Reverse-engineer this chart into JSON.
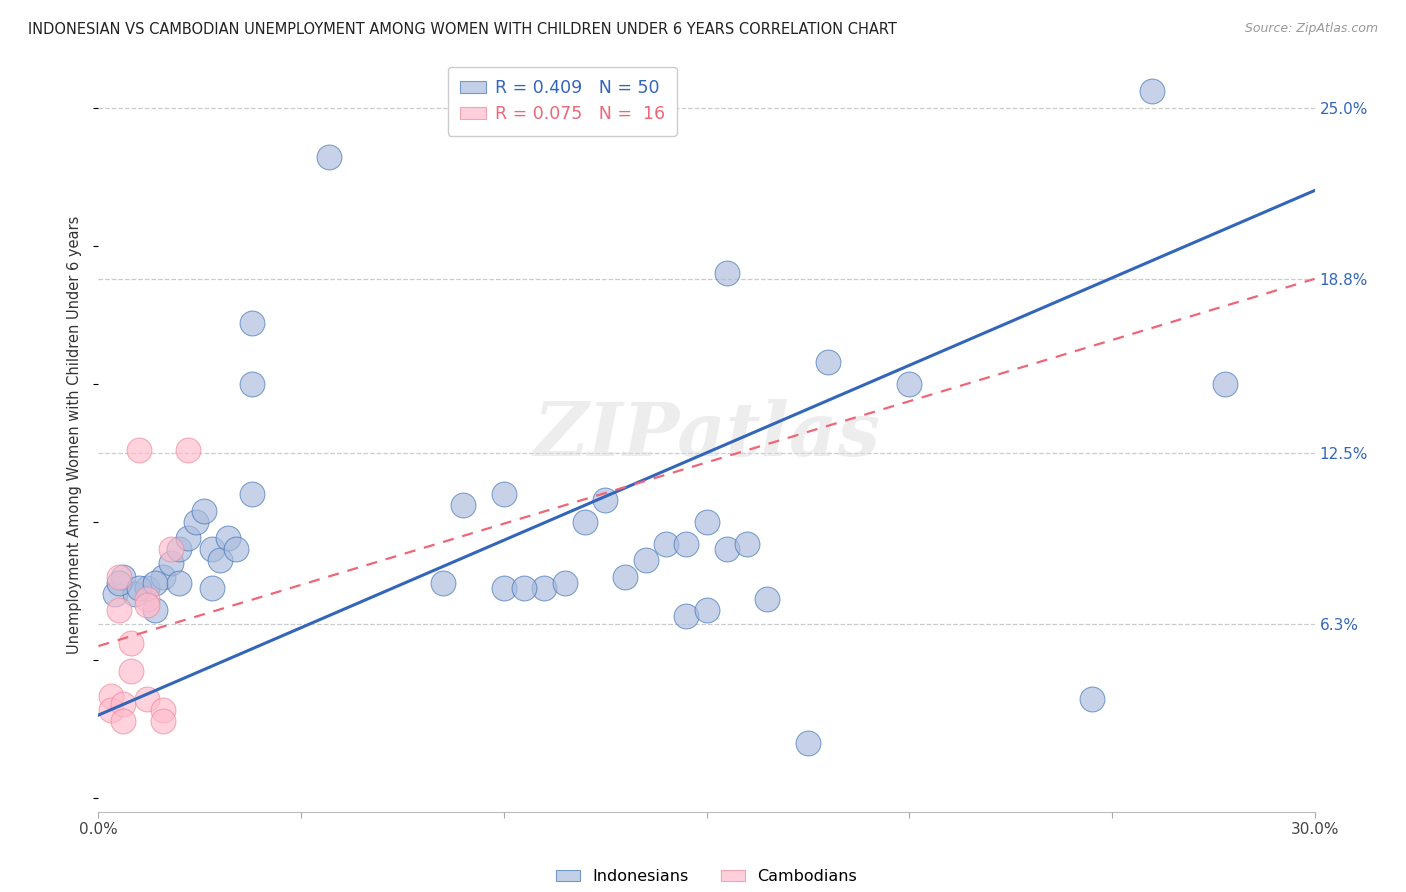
{
  "title": "INDONESIAN VS CAMBODIAN UNEMPLOYMENT AMONG WOMEN WITH CHILDREN UNDER 6 YEARS CORRELATION CHART",
  "source": "Source: ZipAtlas.com",
  "ylabel": "Unemployment Among Women with Children Under 6 years",
  "xlim": [
    0.0,
    0.3
  ],
  "ylim": [
    -0.005,
    0.268
  ],
  "xticks": [
    0.0,
    0.05,
    0.1,
    0.15,
    0.2,
    0.25,
    0.3
  ],
  "xticklabels": [
    "0.0%",
    "",
    "",
    "",
    "",
    "",
    "30.0%"
  ],
  "yticks_right": [
    0.063,
    0.125,
    0.188,
    0.25
  ],
  "yticks_right_labels": [
    "6.3%",
    "12.5%",
    "18.8%",
    "25.0%"
  ],
  "legend_blue_r": "R = 0.409",
  "legend_blue_n": "N = 50",
  "legend_pink_r": "R = 0.075",
  "legend_pink_n": "N =  16",
  "blue_fill": "#AABBDD",
  "pink_fill": "#FFBBCC",
  "blue_edge": "#4477BB",
  "pink_edge": "#EE8899",
  "blue_line": "#3366BB",
  "pink_line": "#EE6677",
  "watermark_color": "#DDDDDD",
  "indonesian_x": [
    0.014,
    0.057,
    0.038,
    0.004,
    0.006,
    0.009,
    0.012,
    0.016,
    0.018,
    0.02,
    0.022,
    0.024,
    0.026,
    0.028,
    0.03,
    0.032,
    0.034,
    0.038,
    0.005,
    0.01,
    0.014,
    0.02,
    0.028,
    0.038,
    0.085,
    0.09,
    0.1,
    0.12,
    0.125,
    0.13,
    0.135,
    0.14,
    0.145,
    0.15,
    0.155,
    0.16,
    0.1,
    0.11,
    0.165,
    0.105,
    0.115,
    0.145,
    0.15,
    0.155,
    0.18,
    0.2,
    0.175,
    0.245,
    0.26,
    0.278
  ],
  "indonesian_y": [
    0.068,
    0.232,
    0.172,
    0.074,
    0.08,
    0.074,
    0.076,
    0.08,
    0.085,
    0.09,
    0.094,
    0.1,
    0.104,
    0.09,
    0.086,
    0.094,
    0.09,
    0.15,
    0.078,
    0.076,
    0.078,
    0.078,
    0.076,
    0.11,
    0.078,
    0.106,
    0.11,
    0.1,
    0.108,
    0.08,
    0.086,
    0.092,
    0.092,
    0.1,
    0.09,
    0.092,
    0.076,
    0.076,
    0.072,
    0.076,
    0.078,
    0.066,
    0.068,
    0.19,
    0.158,
    0.15,
    0.02,
    0.036,
    0.256,
    0.15
  ],
  "cambodian_x": [
    0.003,
    0.003,
    0.005,
    0.005,
    0.006,
    0.006,
    0.008,
    0.008,
    0.01,
    0.012,
    0.012,
    0.012,
    0.016,
    0.016,
    0.018,
    0.022
  ],
  "cambodian_y": [
    0.037,
    0.032,
    0.08,
    0.068,
    0.034,
    0.028,
    0.056,
    0.046,
    0.126,
    0.072,
    0.07,
    0.036,
    0.032,
    0.028,
    0.09,
    0.126
  ],
  "blue_trendline_x": [
    0.0,
    0.3
  ],
  "blue_trendline_y": [
    0.03,
    0.22
  ],
  "pink_trendline_x": [
    0.0,
    0.3
  ],
  "pink_trendline_y": [
    0.055,
    0.188
  ]
}
